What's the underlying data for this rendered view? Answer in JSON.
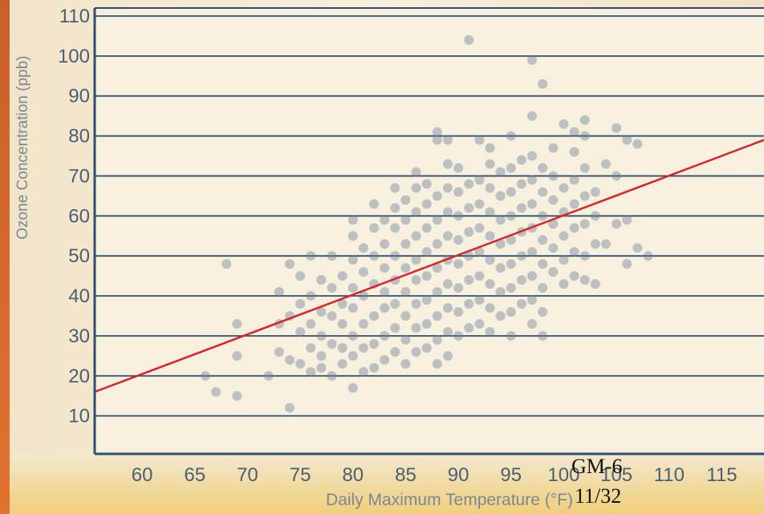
{
  "chart_data": {
    "type": "scatter",
    "title": "",
    "xlabel": "Daily Maximum Temperature (°F)",
    "ylabel": "Ozone Concentration (ppb)",
    "xlim": [
      55.5,
      119
    ],
    "ylim": [
      0.5,
      112
    ],
    "x_ticks": [
      "60",
      "65",
      "70",
      "75",
      "80",
      "85",
      "90",
      "95",
      "100",
      "105",
      "110",
      "115"
    ],
    "y_ticks": [
      "10",
      "20",
      "30",
      "40",
      "50",
      "60",
      "70",
      "80",
      "90",
      "100",
      "110"
    ],
    "x_tick_values": [
      60,
      65,
      70,
      75,
      80,
      85,
      90,
      95,
      100,
      105,
      110,
      115
    ],
    "y_tick_values": [
      10,
      20,
      30,
      40,
      50,
      60,
      70,
      80,
      90,
      100,
      110
    ],
    "grid": "horizontal",
    "trendline": {
      "x": [
        55.5,
        119
      ],
      "y": [
        16,
        79
      ],
      "color": "#d9232a"
    },
    "point_color": "#6b7f98",
    "background_color": "#f4ead2",
    "series": [
      {
        "values": [
          [
            66,
            20
          ],
          [
            67,
            16
          ],
          [
            68,
            48
          ],
          [
            69,
            15
          ],
          [
            69,
            25
          ],
          [
            69,
            33
          ],
          [
            72,
            20
          ],
          [
            73,
            26
          ],
          [
            73,
            33
          ],
          [
            73,
            41
          ],
          [
            74,
            12
          ],
          [
            74,
            24
          ],
          [
            74,
            35
          ],
          [
            74,
            48
          ],
          [
            75,
            23
          ],
          [
            75,
            31
          ],
          [
            75,
            38
          ],
          [
            75,
            45
          ],
          [
            76,
            21
          ],
          [
            76,
            27
          ],
          [
            76,
            33
          ],
          [
            76,
            40
          ],
          [
            76,
            50
          ],
          [
            77,
            25
          ],
          [
            77,
            30
          ],
          [
            77,
            36
          ],
          [
            77,
            44
          ],
          [
            77,
            22
          ],
          [
            78,
            20
          ],
          [
            78,
            28
          ],
          [
            78,
            35
          ],
          [
            78,
            42
          ],
          [
            78,
            50
          ],
          [
            79,
            23
          ],
          [
            79,
            27
          ],
          [
            79,
            33
          ],
          [
            79,
            38
          ],
          [
            79,
            45
          ],
          [
            80,
            17
          ],
          [
            80,
            25
          ],
          [
            80,
            30
          ],
          [
            80,
            37
          ],
          [
            80,
            42
          ],
          [
            80,
            49
          ],
          [
            80,
            55
          ],
          [
            80,
            59
          ],
          [
            81,
            21
          ],
          [
            81,
            27
          ],
          [
            81,
            33
          ],
          [
            81,
            40
          ],
          [
            81,
            46
          ],
          [
            81,
            52
          ],
          [
            82,
            22
          ],
          [
            82,
            28
          ],
          [
            82,
            35
          ],
          [
            82,
            43
          ],
          [
            82,
            50
          ],
          [
            82,
            57
          ],
          [
            82,
            63
          ],
          [
            83,
            24
          ],
          [
            83,
            30
          ],
          [
            83,
            37
          ],
          [
            83,
            41
          ],
          [
            83,
            47
          ],
          [
            83,
            53
          ],
          [
            83,
            59
          ],
          [
            84,
            26
          ],
          [
            84,
            32
          ],
          [
            84,
            38
          ],
          [
            84,
            44
          ],
          [
            84,
            50
          ],
          [
            84,
            57
          ],
          [
            84,
            62
          ],
          [
            84,
            67
          ],
          [
            85,
            23
          ],
          [
            85,
            29
          ],
          [
            85,
            35
          ],
          [
            85,
            41
          ],
          [
            85,
            47
          ],
          [
            85,
            53
          ],
          [
            85,
            59
          ],
          [
            85,
            64
          ],
          [
            86,
            26
          ],
          [
            86,
            32
          ],
          [
            86,
            38
          ],
          [
            86,
            44
          ],
          [
            86,
            49
          ],
          [
            86,
            55
          ],
          [
            86,
            61
          ],
          [
            86,
            67
          ],
          [
            86,
            71
          ],
          [
            87,
            27
          ],
          [
            87,
            33
          ],
          [
            87,
            39
          ],
          [
            87,
            45
          ],
          [
            87,
            51
          ],
          [
            87,
            57
          ],
          [
            87,
            63
          ],
          [
            87,
            68
          ],
          [
            88,
            23
          ],
          [
            88,
            29
          ],
          [
            88,
            35
          ],
          [
            88,
            41
          ],
          [
            88,
            47
          ],
          [
            88,
            53
          ],
          [
            88,
            59
          ],
          [
            88,
            65
          ],
          [
            88,
            79
          ],
          [
            88,
            81
          ],
          [
            89,
            25
          ],
          [
            89,
            31
          ],
          [
            89,
            37
          ],
          [
            89,
            43
          ],
          [
            89,
            49
          ],
          [
            89,
            55
          ],
          [
            89,
            61
          ],
          [
            89,
            67
          ],
          [
            89,
            73
          ],
          [
            89,
            79
          ],
          [
            90,
            30
          ],
          [
            90,
            36
          ],
          [
            90,
            42
          ],
          [
            90,
            48
          ],
          [
            90,
            54
          ],
          [
            90,
            60
          ],
          [
            90,
            66
          ],
          [
            90,
            72
          ],
          [
            91,
            104
          ],
          [
            91,
            32
          ],
          [
            91,
            38
          ],
          [
            91,
            44
          ],
          [
            91,
            50
          ],
          [
            91,
            56
          ],
          [
            91,
            62
          ],
          [
            91,
            68
          ],
          [
            92,
            33
          ],
          [
            92,
            39
          ],
          [
            92,
            45
          ],
          [
            92,
            51
          ],
          [
            92,
            57
          ],
          [
            92,
            63
          ],
          [
            92,
            69
          ],
          [
            92,
            79
          ],
          [
            93,
            31
          ],
          [
            93,
            37
          ],
          [
            93,
            43
          ],
          [
            93,
            49
          ],
          [
            93,
            55
          ],
          [
            93,
            61
          ],
          [
            93,
            67
          ],
          [
            93,
            73
          ],
          [
            93,
            77
          ],
          [
            94,
            35
          ],
          [
            94,
            41
          ],
          [
            94,
            47
          ],
          [
            94,
            53
          ],
          [
            94,
            59
          ],
          [
            94,
            65
          ],
          [
            94,
            71
          ],
          [
            95,
            30
          ],
          [
            95,
            36
          ],
          [
            95,
            42
          ],
          [
            95,
            48
          ],
          [
            95,
            54
          ],
          [
            95,
            60
          ],
          [
            95,
            66
          ],
          [
            95,
            72
          ],
          [
            95,
            80
          ],
          [
            96,
            38
          ],
          [
            96,
            44
          ],
          [
            96,
            50
          ],
          [
            96,
            56
          ],
          [
            96,
            62
          ],
          [
            96,
            68
          ],
          [
            96,
            74
          ],
          [
            97,
            33
          ],
          [
            97,
            39
          ],
          [
            97,
            45
          ],
          [
            97,
            51
          ],
          [
            97,
            57
          ],
          [
            97,
            63
          ],
          [
            97,
            69
          ],
          [
            97,
            75
          ],
          [
            97,
            85
          ],
          [
            97,
            99
          ],
          [
            98,
            30
          ],
          [
            98,
            36
          ],
          [
            98,
            42
          ],
          [
            98,
            48
          ],
          [
            98,
            54
          ],
          [
            98,
            60
          ],
          [
            98,
            66
          ],
          [
            98,
            72
          ],
          [
            98,
            93
          ],
          [
            99,
            46
          ],
          [
            99,
            52
          ],
          [
            99,
            58
          ],
          [
            99,
            64
          ],
          [
            99,
            70
          ],
          [
            99,
            77
          ],
          [
            100,
            43
          ],
          [
            100,
            49
          ],
          [
            100,
            55
          ],
          [
            100,
            61
          ],
          [
            100,
            67
          ],
          [
            100,
            83
          ],
          [
            101,
            45
          ],
          [
            101,
            51
          ],
          [
            101,
            57
          ],
          [
            101,
            63
          ],
          [
            101,
            69
          ],
          [
            101,
            76
          ],
          [
            101,
            81
          ],
          [
            102,
            44
          ],
          [
            102,
            50
          ],
          [
            102,
            58
          ],
          [
            102,
            65
          ],
          [
            102,
            72
          ],
          [
            102,
            80
          ],
          [
            102,
            84
          ],
          [
            103,
            43
          ],
          [
            103,
            53
          ],
          [
            103,
            60
          ],
          [
            103,
            66
          ],
          [
            104,
            53
          ],
          [
            104,
            73
          ],
          [
            105,
            58
          ],
          [
            105,
            70
          ],
          [
            105,
            82
          ],
          [
            106,
            48
          ],
          [
            106,
            59
          ],
          [
            106,
            79
          ],
          [
            107,
            52
          ],
          [
            107,
            78
          ],
          [
            108,
            50
          ]
        ]
      }
    ]
  },
  "slide": {
    "code": "GM-6",
    "page": "11/32"
  }
}
